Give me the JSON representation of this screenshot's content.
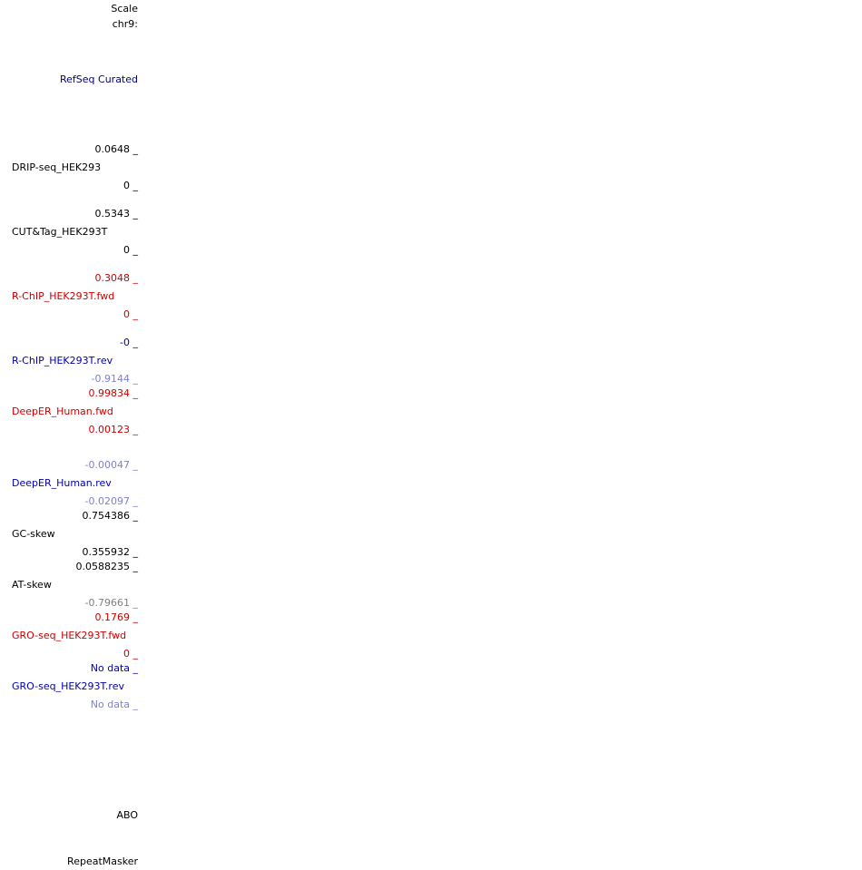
{
  "header": {
    "scale": "Scale",
    "chrom": "chr9:"
  },
  "refseq": "RefSeq Curated",
  "tracks": [
    {
      "max": "0.0648 _",
      "name": "DRIP-seq_HEK293",
      "min": "0 _"
    },
    {
      "max": "0.5343 _",
      "name": "CUT&Tag_HEK293T",
      "min": "0 _"
    },
    {
      "max": "0.3048 _",
      "name": "R-ChIP_HEK293T.fwd",
      "min": "0 _"
    },
    {
      "max": "-0 _",
      "name": "R-ChIP_HEK293T.rev",
      "min": "-0.9144 _"
    },
    {
      "max": "0.99834 _",
      "name": "DeepER_Human.fwd",
      "min": "0.00123 _"
    },
    {
      "max": "-0.00047 _",
      "name": "DeepER_Human.rev",
      "min": "-0.02097 _"
    },
    {
      "max": "0.754386 _",
      "name": "GC-skew",
      "min": "0.355932 _"
    },
    {
      "max": "0.0588235 _",
      "name": "AT-skew",
      "min": "-0.79661 _"
    },
    {
      "max": "0.1769 _",
      "name": "GRO-seq_HEK293T.fwd",
      "min": "0 _"
    },
    {
      "max": "No data _",
      "name": "GRO-seq_HEK293T.rev",
      "min": "No data _"
    }
  ],
  "gene": "ABO",
  "repeat": "RepeatMasker"
}
